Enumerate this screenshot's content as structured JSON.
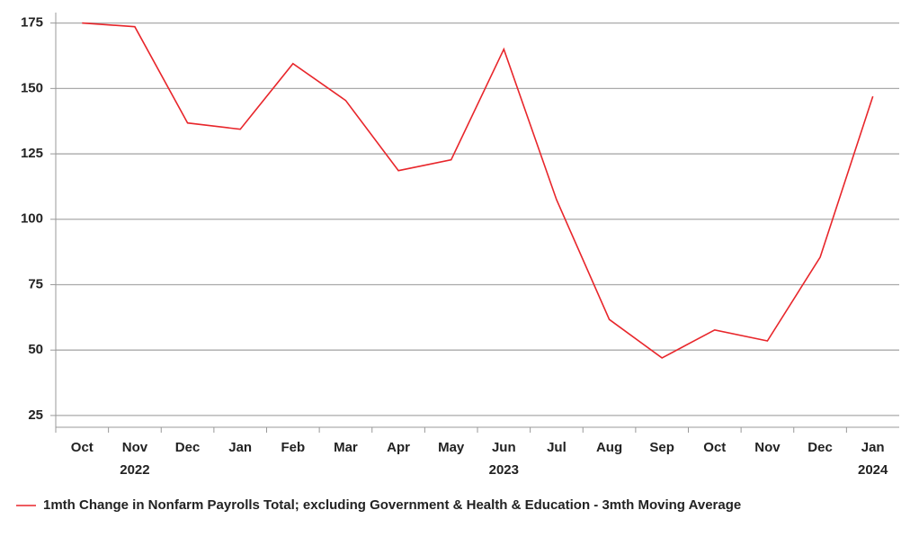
{
  "chart_data": {
    "type": "line",
    "categories": [
      "Oct",
      "Nov",
      "Dec",
      "Jan",
      "Feb",
      "Mar",
      "Apr",
      "May",
      "Jun",
      "Jul",
      "Aug",
      "Sep",
      "Oct",
      "Nov",
      "Dec",
      "Jan"
    ],
    "year_labels": [
      null,
      "2022",
      null,
      null,
      null,
      null,
      null,
      null,
      "2023",
      null,
      null,
      null,
      null,
      null,
      null,
      "2024"
    ],
    "series": [
      {
        "name": "1mth Change in Nonfarm Payrolls Total; excluding Government & Health & Education - 3mth Moving Average",
        "color": "#e8262b",
        "values": [
          175,
          173.6,
          136.8,
          134.4,
          159.5,
          145.4,
          118.6,
          122.7,
          165,
          107.5,
          61.7,
          47,
          57.7,
          53.5,
          85.5,
          147
        ]
      }
    ],
    "ylim": [
      20.5,
      179
    ],
    "yticks": [
      25,
      50,
      75,
      100,
      125,
      150,
      175
    ],
    "grid": true,
    "legend": "bottom"
  }
}
